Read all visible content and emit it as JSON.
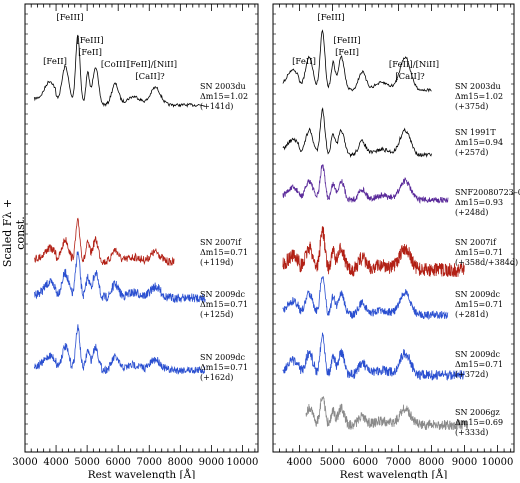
{
  "figure": {
    "ylabel": "Scaled Fλ + const.",
    "xlabel": "Rest wavelength [Å]",
    "colors": {
      "black": "#000000",
      "red": "#b22015",
      "blue": "#2a4fd0",
      "purple": "#5a2a9a",
      "grey": "#8a8a8a"
    }
  },
  "chart_data": [
    {
      "type": "line",
      "panel": "left",
      "xlabel": "Rest wavelength [Å]",
      "ylabel": "Scaled Fλ + const.",
      "xlim": [
        3000,
        10500
      ],
      "xticks": [
        3000,
        4000,
        5000,
        6000,
        7000,
        8000,
        9000,
        10000
      ],
      "line_ids": [
        "[FeII]",
        "[FeIII]",
        "[FeIII]",
        "[FeII]",
        "[CoIII]",
        "[FeII]/[NiII]",
        "[CaII]?"
      ],
      "series": [
        {
          "name": "SN 2003du",
          "dm15": "Δm15=1.02",
          "epoch": "(+141d)",
          "color": "black",
          "x_range": [
            3300,
            8800
          ]
        },
        {
          "name": "SN 2007if",
          "dm15": "Δm15=0.71",
          "epoch": "(+119d)",
          "color": "red",
          "x_range": [
            3300,
            7800
          ]
        },
        {
          "name": "SN 2009dc",
          "dm15": "Δm15=0.71",
          "epoch": "(+125d)",
          "color": "blue",
          "x_range": [
            3300,
            8800
          ]
        },
        {
          "name": "SN 2009dc",
          "dm15": "Δm15=0.71",
          "epoch": "(+162d)",
          "color": "blue",
          "x_range": [
            3300,
            8800
          ]
        }
      ]
    },
    {
      "type": "line",
      "panel": "right",
      "xlabel": "Rest wavelength [Å]",
      "xlim": [
        3200,
        10500
      ],
      "xticks": [
        4000,
        5000,
        6000,
        7000,
        8000,
        9000,
        10000
      ],
      "line_ids": [
        "[FeII]",
        "[FeIII]",
        "[FeIII]",
        "[FeII]",
        "[FeII]/[NiII]",
        "[CaII]?"
      ],
      "series": [
        {
          "name": "SN 2003du",
          "dm15": "Δm15=1.02",
          "epoch": "(+375d)",
          "color": "black",
          "x_range": [
            3500,
            8000
          ]
        },
        {
          "name": "SN 1991T",
          "dm15": "Δm15=0.94",
          "epoch": "(+257d)",
          "color": "black",
          "x_range": [
            3500,
            8000
          ]
        },
        {
          "name": "SNF20080723–012",
          "dm15": "Δm15=0.93",
          "epoch": "(+248d)",
          "color": "purple",
          "x_range": [
            3500,
            8500
          ]
        },
        {
          "name": "SN 2007if",
          "dm15": "Δm15=0.71",
          "epoch": "(+358d/+384d)",
          "color": "red",
          "x_range": [
            3500,
            9000
          ]
        },
        {
          "name": "SN 2009dc",
          "dm15": "Δm15=0.71",
          "epoch": "(+281d)",
          "color": "blue",
          "x_range": [
            3500,
            8500
          ]
        },
        {
          "name": "SN 2009dc",
          "dm15": "Δm15=0.71",
          "epoch": "(+372d)",
          "color": "blue",
          "x_range": [
            3500,
            9000
          ]
        },
        {
          "name": "SN 2006gz",
          "dm15": "Δm15=0.69",
          "epoch": "(+333d)",
          "color": "grey",
          "x_range": [
            4200,
            9100
          ]
        }
      ]
    }
  ]
}
